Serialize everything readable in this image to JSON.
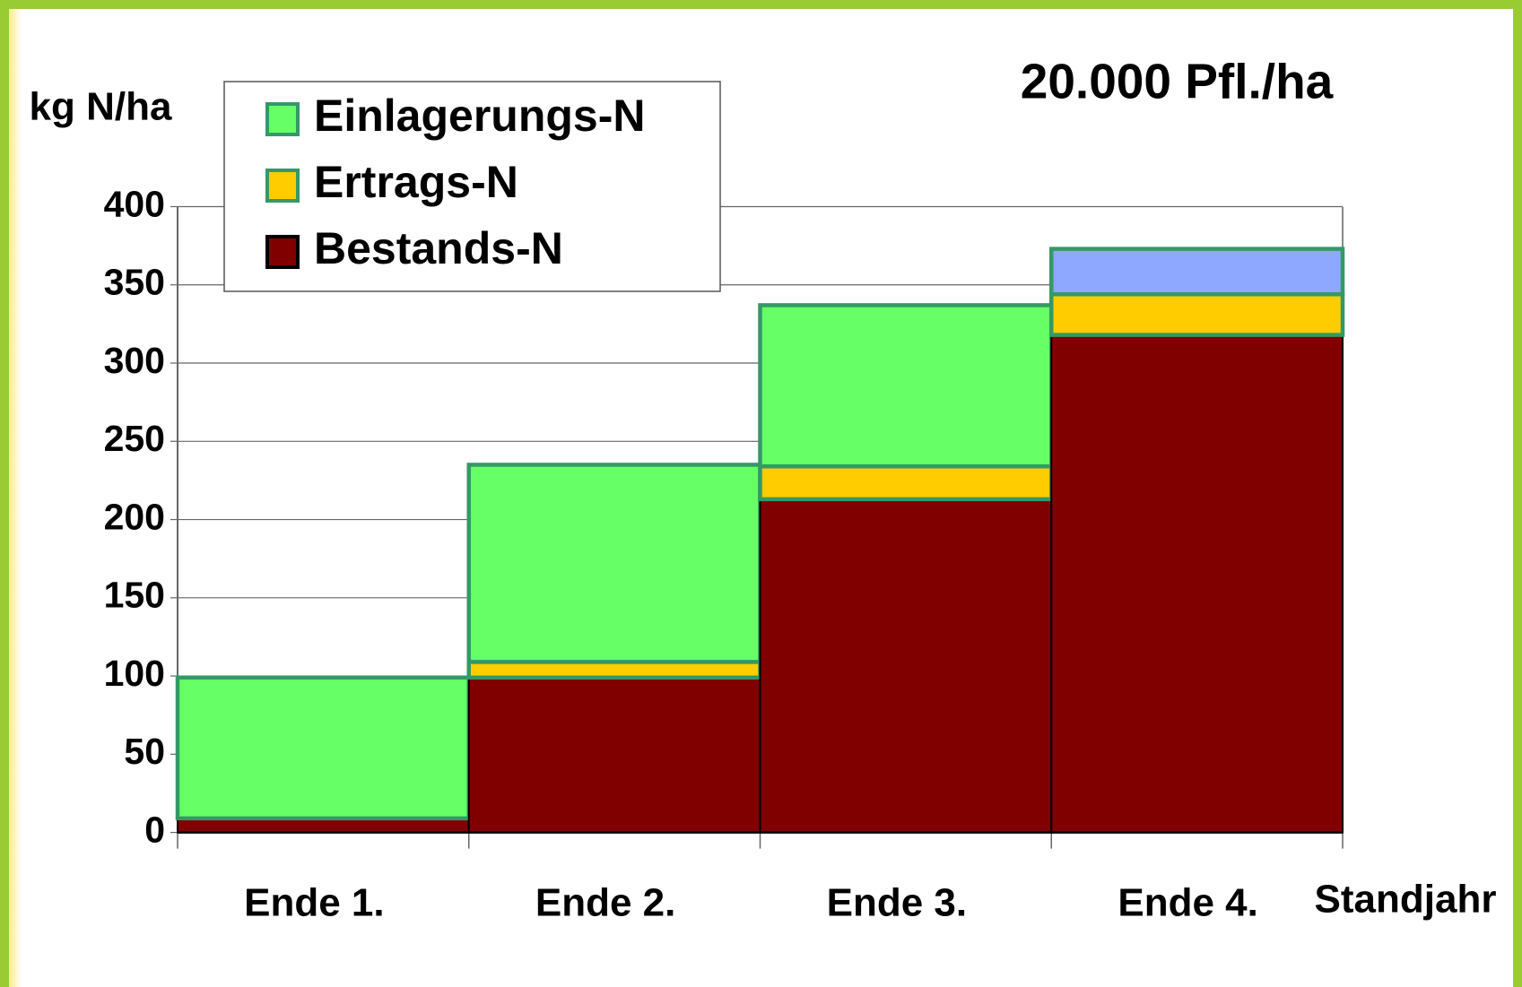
{
  "chart_data": {
    "type": "stacked_bar",
    "title": "20.000 Pfl./ha",
    "y_label": "kg N/ha",
    "x_label": "Standjahr",
    "categories": [
      "Ende 1.",
      "Ende 2.",
      "Ende 3.",
      "Ende 4."
    ],
    "series": [
      {
        "name": "Bestands-N",
        "color": "#800000",
        "values": [
          9,
          99,
          213,
          318
        ]
      },
      {
        "name": "Ertrags-N",
        "color": "#ffcc00",
        "values": [
          0,
          10,
          21,
          26
        ]
      },
      {
        "name": "Einlagerungs-N",
        "color": "#66ff66",
        "values": [
          90,
          126,
          103,
          0
        ]
      },
      {
        "color": "#8ea8ff",
        "values": [
          null,
          null,
          null,
          29
        ]
      }
    ],
    "ylim": [
      0,
      400
    ],
    "yticks": [
      0,
      50,
      100,
      150,
      200,
      250,
      300,
      350,
      400
    ],
    "grid": true
  }
}
